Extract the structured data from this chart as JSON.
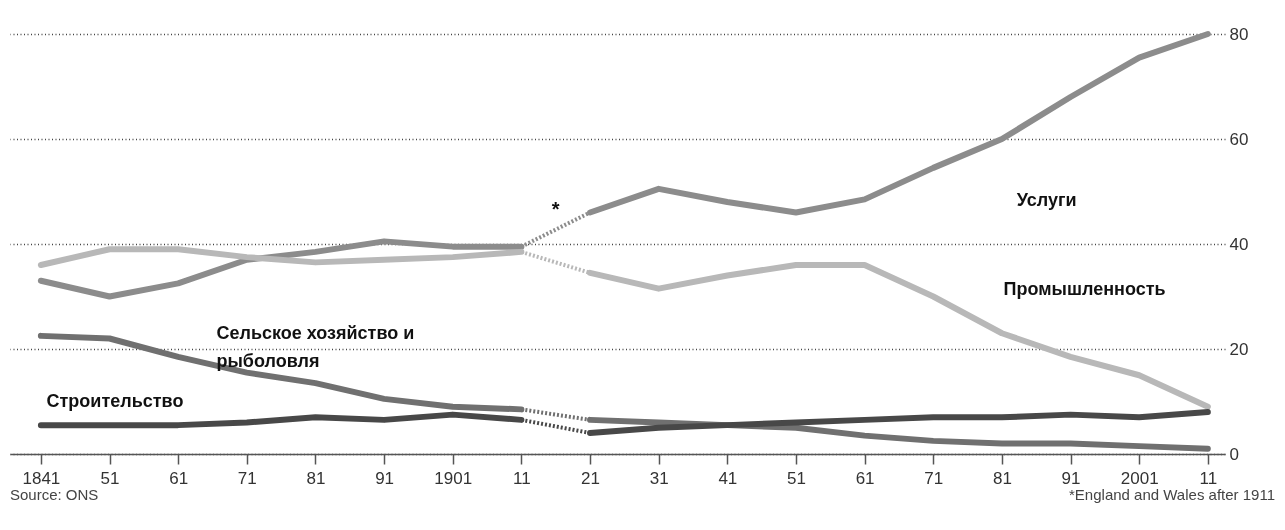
{
  "chart_data": {
    "type": "line",
    "xlim": [
      1836.5,
      2013.5
    ],
    "ylim": [
      0,
      80
    ],
    "xticks": [
      1841,
      {
        "value": 1851,
        "label": "51"
      },
      {
        "value": 1861,
        "label": "61"
      },
      {
        "value": 1871,
        "label": "71"
      },
      {
        "value": 1881,
        "label": "81"
      },
      {
        "value": 1891,
        "label": "91"
      },
      1901,
      {
        "value": 1911,
        "label": "11"
      },
      {
        "value": 1921,
        "label": "21"
      },
      {
        "value": 1931,
        "label": "31"
      },
      {
        "value": 1941,
        "label": "41"
      },
      {
        "value": 1951,
        "label": "51"
      },
      {
        "value": 1961,
        "label": "61"
      },
      {
        "value": 1971,
        "label": "71"
      },
      {
        "value": 1981,
        "label": "81"
      },
      {
        "value": 1991,
        "label": "91"
      },
      2001,
      {
        "value": 2011,
        "label": "11"
      }
    ],
    "yticks": [
      0,
      20,
      40,
      60,
      80
    ],
    "grid": "y",
    "marker": "none",
    "series": [
      {
        "color": "#8c8c8c",
        "line_style": "solid",
        "x": [
          1841,
          1851,
          1861,
          1871,
          1881,
          1891,
          1901,
          1911
        ],
        "values": [
          33,
          30,
          32.5,
          37,
          38.5,
          40.5,
          39.5,
          39.5
        ]
      },
      {
        "color": "#8c8c8c",
        "line_style": "dotted",
        "x": [
          1911,
          1921
        ],
        "values": [
          39.5,
          46
        ]
      },
      {
        "name": "Услуги",
        "color": "#8c8c8c",
        "line_style": "solid",
        "x": [
          1921,
          1931,
          1941,
          1951,
          1961,
          1971,
          1981,
          1991,
          2001,
          2011
        ],
        "values": [
          46,
          50.5,
          48,
          46,
          48.5,
          54.5,
          60,
          68,
          75.5,
          80
        ]
      },
      {
        "color": "#b8b8b8",
        "line_style": "solid",
        "x": [
          1841,
          1851,
          1861,
          1871,
          1881,
          1891,
          1901,
          1911
        ],
        "values": [
          36,
          39,
          39,
          37.5,
          36.5,
          37,
          37.5,
          38.5
        ]
      },
      {
        "color": "#b8b8b8",
        "line_style": "dotted",
        "x": [
          1911,
          1921
        ],
        "values": [
          38.5,
          34.5
        ]
      },
      {
        "name": "Промышленность",
        "color": "#b8b8b8",
        "line_style": "solid",
        "x": [
          1921,
          1931,
          1941,
          1951,
          1961,
          1971,
          1981,
          1991,
          2001,
          2011
        ],
        "values": [
          34.5,
          31.5,
          34,
          36,
          36,
          30,
          23,
          18.5,
          15,
          9
        ]
      },
      {
        "name": "Сельское хозяйство и рыболовля",
        "color": "#707070",
        "line_style": "solid",
        "x": [
          1841,
          1851,
          1861,
          1871,
          1881,
          1891,
          1901,
          1911
        ],
        "values": [
          22.5,
          22,
          18.5,
          15.5,
          13.5,
          10.5,
          9,
          8.5
        ]
      },
      {
        "color": "#707070",
        "line_style": "dotted",
        "x": [
          1911,
          1921
        ],
        "values": [
          8.5,
          6.5
        ]
      },
      {
        "color": "#707070",
        "line_style": "solid",
        "x": [
          1921,
          1931,
          1941,
          1951,
          1961,
          1971,
          1981,
          1991,
          2001,
          2011
        ],
        "values": [
          6.5,
          6,
          5.5,
          5,
          3.5,
          2.5,
          2,
          2,
          1.5,
          1
        ]
      },
      {
        "name": "Строительство",
        "color": "#484848",
        "line_style": "solid",
        "x": [
          1841,
          1851,
          1861,
          1871,
          1881,
          1891,
          1901,
          1911
        ],
        "values": [
          5.5,
          5.5,
          5.5,
          6,
          7,
          6.5,
          7.5,
          6.5
        ]
      },
      {
        "color": "#484848",
        "line_style": "dotted",
        "x": [
          1911,
          1921
        ],
        "values": [
          6.5,
          4
        ]
      },
      {
        "color": "#484848",
        "line_style": "solid",
        "x": [
          1921,
          1931,
          1941,
          1951,
          1961,
          1971,
          1981,
          1991,
          2001,
          2011
        ],
        "values": [
          4,
          5,
          5.5,
          6,
          6.5,
          7,
          7,
          7.5,
          7,
          8
        ]
      }
    ],
    "annotations": [
      "*",
      "Source: ONS",
      "*England and Wales after 1911"
    ]
  }
}
